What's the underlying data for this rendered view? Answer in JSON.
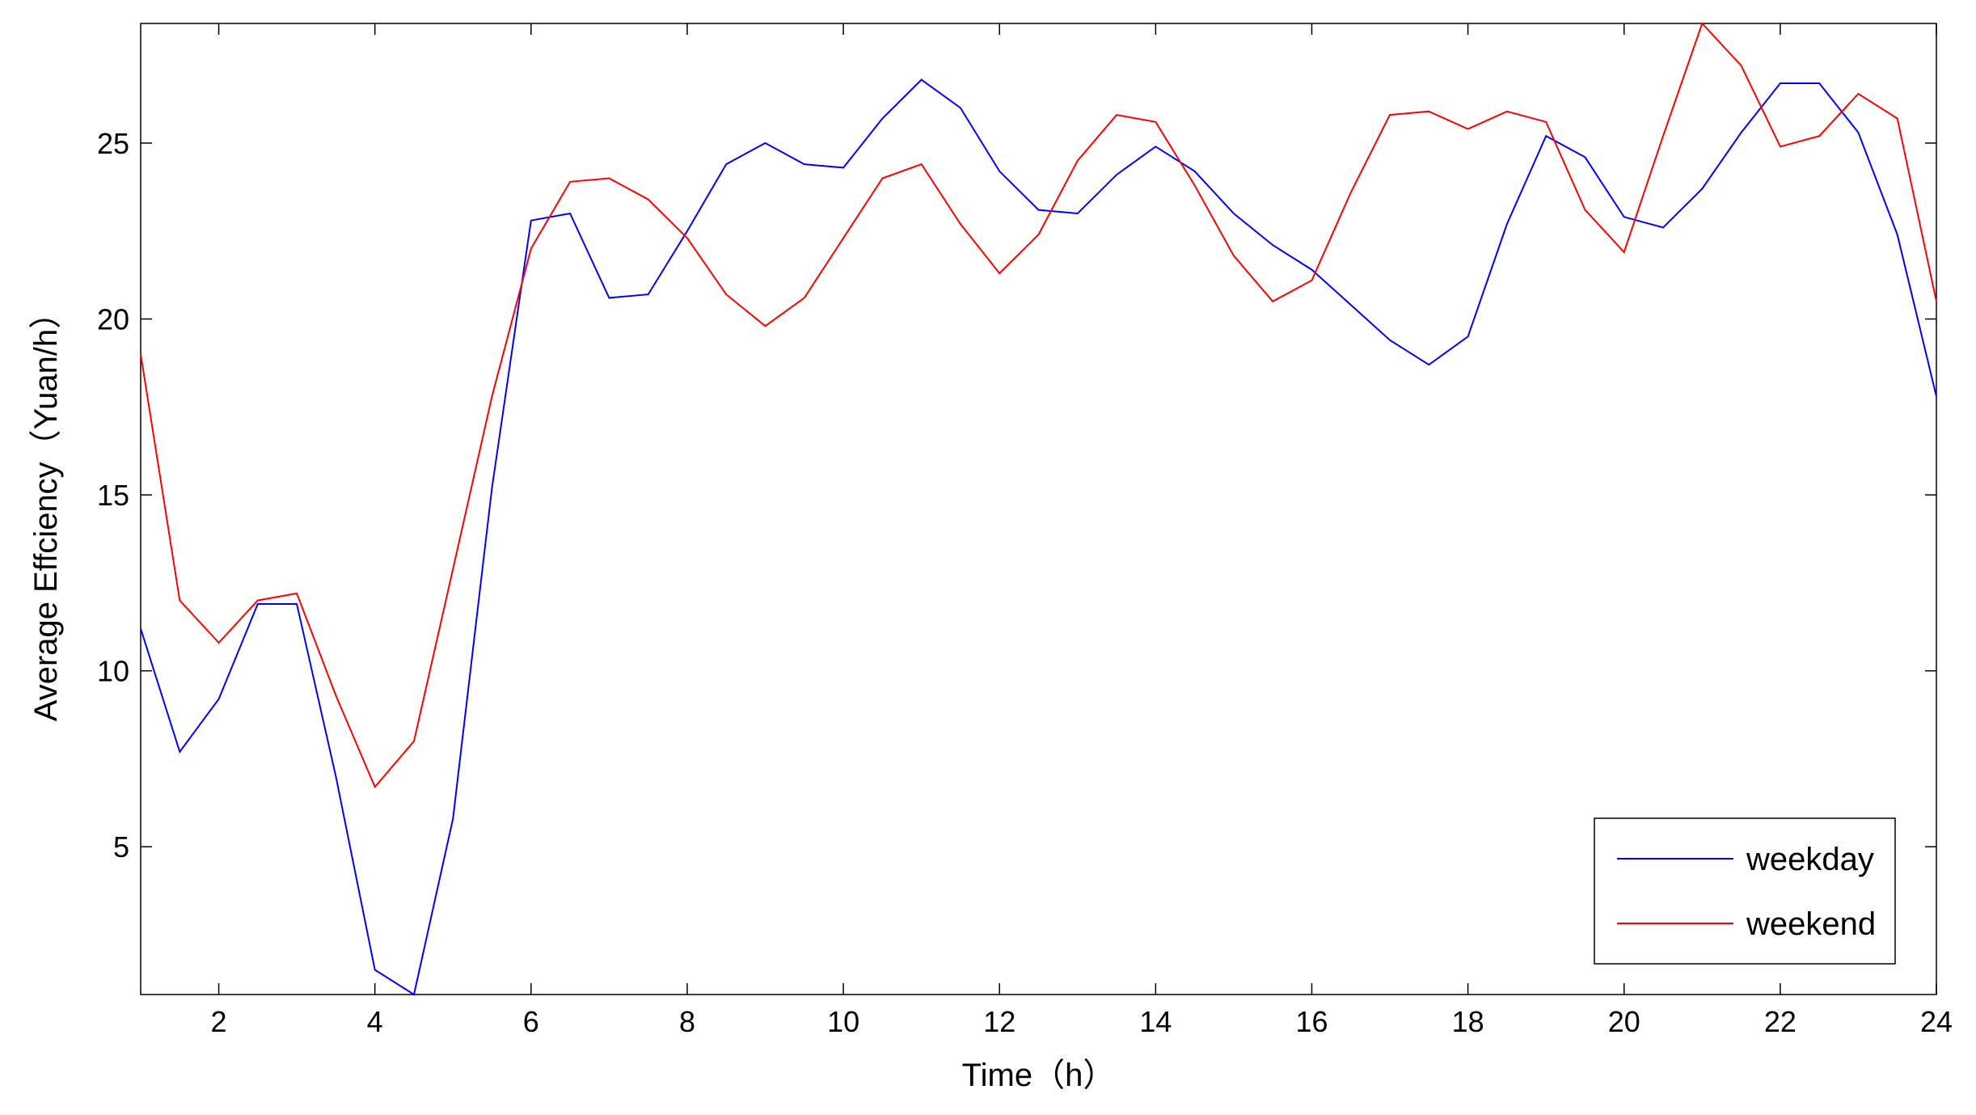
{
  "chart_data": {
    "type": "line",
    "title": "",
    "xlabel": "Time（h）",
    "ylabel": "Average Effciency（Yuan/h）",
    "xlim": [
      1,
      24
    ],
    "ylim": [
      0.8,
      28.4
    ],
    "xticks": [
      2,
      4,
      6,
      8,
      10,
      12,
      14,
      16,
      18,
      20,
      22,
      24
    ],
    "yticks": [
      5,
      10,
      15,
      20,
      25
    ],
    "grid": false,
    "legend_position": "bottom-right",
    "x": [
      1,
      1.5,
      2,
      2.5,
      3,
      3.5,
      4,
      4.5,
      5,
      5.5,
      6,
      6.5,
      7,
      7.5,
      8,
      8.5,
      9,
      9.5,
      10,
      10.5,
      11,
      11.5,
      12,
      12.5,
      13,
      13.5,
      14,
      14.5,
      15,
      15.5,
      16,
      16.5,
      17,
      17.5,
      18,
      18.5,
      19,
      19.5,
      20,
      20.5,
      21,
      21.5,
      22,
      22.5,
      23,
      23.5,
      24
    ],
    "series": [
      {
        "name": "weekday",
        "color": "#0000ff",
        "values": [
          11.2,
          7.7,
          9.2,
          11.9,
          11.9,
          7.0,
          1.5,
          0.8,
          5.8,
          15.2,
          22.8,
          23.0,
          20.6,
          20.7,
          22.5,
          24.4,
          25.0,
          24.4,
          24.3,
          25.7,
          26.8,
          26.0,
          24.2,
          23.1,
          23.0,
          24.1,
          24.9,
          24.2,
          23.0,
          22.1,
          21.4,
          20.4,
          19.4,
          18.7,
          19.5,
          22.7,
          25.2,
          24.6,
          22.9,
          22.6,
          23.7,
          25.3,
          26.7,
          26.7,
          25.3,
          22.4,
          17.8
        ]
      },
      {
        "name": "weekend",
        "color": "#ff0000",
        "values": [
          19.0,
          12.0,
          10.8,
          12.0,
          12.2,
          9.3,
          6.7,
          8.0,
          12.9,
          17.8,
          22.0,
          23.9,
          24.0,
          23.4,
          22.3,
          20.7,
          19.8,
          20.6,
          22.3,
          24.0,
          24.4,
          22.7,
          21.3,
          22.4,
          24.5,
          25.8,
          25.6,
          23.8,
          21.8,
          20.5,
          21.1,
          23.6,
          25.8,
          25.9,
          25.4,
          25.9,
          25.6,
          23.1,
          21.9,
          25.2,
          28.4,
          27.2,
          24.9,
          25.2,
          26.4,
          25.7,
          20.5
        ]
      }
    ]
  }
}
